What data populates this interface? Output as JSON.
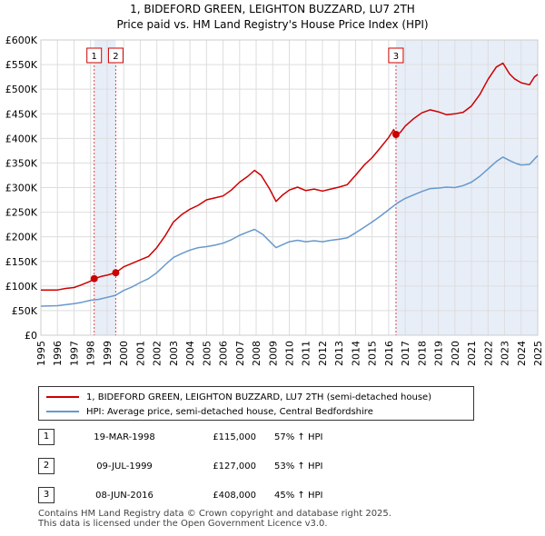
{
  "chart_data": {
    "type": "line",
    "title": "1, BIDEFORD GREEN, LEIGHTON BUZZARD, LU7 2TH",
    "subtitle": "Price paid vs. HM Land Registry's House Price Index (HPI)",
    "xlim": [
      1995,
      2025
    ],
    "ylim": [
      0,
      600000
    ],
    "x_ticks": [
      "1995",
      "1996",
      "1997",
      "1998",
      "1999",
      "2000",
      "2001",
      "2002",
      "2003",
      "2004",
      "2005",
      "2006",
      "2007",
      "2008",
      "2009",
      "2010",
      "2011",
      "2012",
      "2013",
      "2014",
      "2015",
      "2016",
      "2017",
      "2018",
      "2019",
      "2020",
      "2021",
      "2022",
      "2023",
      "2024",
      "2025"
    ],
    "y_ticks": [
      {
        "value": 0,
        "label": "£0"
      },
      {
        "value": 50000,
        "label": "£50K"
      },
      {
        "value": 100000,
        "label": "£100K"
      },
      {
        "value": 150000,
        "label": "£150K"
      },
      {
        "value": 200000,
        "label": "£200K"
      },
      {
        "value": 250000,
        "label": "£250K"
      },
      {
        "value": 300000,
        "label": "£300K"
      },
      {
        "value": 350000,
        "label": "£350K"
      },
      {
        "value": 400000,
        "label": "£400K"
      },
      {
        "value": 450000,
        "label": "£450K"
      },
      {
        "value": 500000,
        "label": "£500K"
      },
      {
        "value": 550000,
        "label": "£550K"
      },
      {
        "value": 600000,
        "label": "£600K"
      }
    ],
    "grid": true,
    "series": [
      {
        "name": "1, BIDEFORD GREEN, LEIGHTON BUZZARD, LU7 2TH (semi-detached house)",
        "color": "#cc0000",
        "points": [
          [
            1995.0,
            92000
          ],
          [
            1996.0,
            92000
          ],
          [
            1996.5,
            95000
          ],
          [
            1997.0,
            97000
          ],
          [
            1997.5,
            103000
          ],
          [
            1998.0,
            110000
          ],
          [
            1998.22,
            115000
          ],
          [
            1998.7,
            120000
          ],
          [
            1999.0,
            122000
          ],
          [
            1999.52,
            127000
          ],
          [
            2000.0,
            139000
          ],
          [
            2000.5,
            146000
          ],
          [
            2001.0,
            153000
          ],
          [
            2001.5,
            160000
          ],
          [
            2002.0,
            178000
          ],
          [
            2002.5,
            202000
          ],
          [
            2003.0,
            230000
          ],
          [
            2003.5,
            245000
          ],
          [
            2004.0,
            256000
          ],
          [
            2004.5,
            264000
          ],
          [
            2005.0,
            275000
          ],
          [
            2005.5,
            279000
          ],
          [
            2006.0,
            283000
          ],
          [
            2006.5,
            295000
          ],
          [
            2007.0,
            311000
          ],
          [
            2007.5,
            323000
          ],
          [
            2007.9,
            335000
          ],
          [
            2008.3,
            325000
          ],
          [
            2008.8,
            298000
          ],
          [
            2009.2,
            272000
          ],
          [
            2009.6,
            285000
          ],
          [
            2010.0,
            295000
          ],
          [
            2010.5,
            301000
          ],
          [
            2011.0,
            294000
          ],
          [
            2011.5,
            297000
          ],
          [
            2012.0,
            293000
          ],
          [
            2012.5,
            297000
          ],
          [
            2013.0,
            301000
          ],
          [
            2013.5,
            306000
          ],
          [
            2014.0,
            325000
          ],
          [
            2014.5,
            345000
          ],
          [
            2015.0,
            361000
          ],
          [
            2015.5,
            381000
          ],
          [
            2016.0,
            402000
          ],
          [
            2016.3,
            418000
          ],
          [
            2016.44,
            408000
          ],
          [
            2016.7,
            412000
          ],
          [
            2017.0,
            425000
          ],
          [
            2017.5,
            440000
          ],
          [
            2018.0,
            452000
          ],
          [
            2018.5,
            458000
          ],
          [
            2019.0,
            454000
          ],
          [
            2019.5,
            448000
          ],
          [
            2020.0,
            450000
          ],
          [
            2020.5,
            453000
          ],
          [
            2021.0,
            466000
          ],
          [
            2021.5,
            489000
          ],
          [
            2022.0,
            520000
          ],
          [
            2022.5,
            545000
          ],
          [
            2022.9,
            553000
          ],
          [
            2023.3,
            531000
          ],
          [
            2023.6,
            521000
          ],
          [
            2024.0,
            513000
          ],
          [
            2024.5,
            509000
          ],
          [
            2024.8,
            525000
          ],
          [
            2025.0,
            530000
          ]
        ]
      },
      {
        "name": "HPI: Average price, semi-detached house, Central Bedfordshire",
        "color": "#6699cc",
        "points": [
          [
            1995.0,
            59000
          ],
          [
            1996.0,
            60000
          ],
          [
            1996.5,
            62000
          ],
          [
            1997.0,
            64000
          ],
          [
            1997.5,
            67000
          ],
          [
            1998.0,
            71000
          ],
          [
            1998.5,
            73000
          ],
          [
            1999.0,
            77000
          ],
          [
            1999.5,
            81000
          ],
          [
            2000.0,
            91000
          ],
          [
            2000.5,
            98000
          ],
          [
            2001.0,
            107000
          ],
          [
            2001.5,
            115000
          ],
          [
            2002.0,
            127000
          ],
          [
            2002.5,
            143000
          ],
          [
            2003.0,
            158000
          ],
          [
            2003.5,
            166000
          ],
          [
            2004.0,
            173000
          ],
          [
            2004.5,
            178000
          ],
          [
            2005.0,
            180000
          ],
          [
            2005.5,
            183000
          ],
          [
            2006.0,
            187000
          ],
          [
            2006.5,
            194000
          ],
          [
            2007.0,
            203000
          ],
          [
            2007.5,
            210000
          ],
          [
            2007.9,
            215000
          ],
          [
            2008.4,
            205000
          ],
          [
            2008.9,
            188000
          ],
          [
            2009.2,
            178000
          ],
          [
            2009.6,
            184000
          ],
          [
            2010.0,
            190000
          ],
          [
            2010.5,
            193000
          ],
          [
            2011.0,
            190000
          ],
          [
            2011.5,
            192000
          ],
          [
            2012.0,
            190000
          ],
          [
            2012.5,
            193000
          ],
          [
            2013.0,
            195000
          ],
          [
            2013.5,
            198000
          ],
          [
            2014.0,
            208000
          ],
          [
            2014.5,
            219000
          ],
          [
            2015.0,
            230000
          ],
          [
            2015.5,
            242000
          ],
          [
            2016.0,
            255000
          ],
          [
            2016.5,
            268000
          ],
          [
            2017.0,
            278000
          ],
          [
            2017.5,
            285000
          ],
          [
            2018.0,
            292000
          ],
          [
            2018.5,
            298000
          ],
          [
            2019.0,
            299000
          ],
          [
            2019.5,
            301000
          ],
          [
            2020.0,
            300000
          ],
          [
            2020.5,
            304000
          ],
          [
            2021.0,
            311000
          ],
          [
            2021.5,
            323000
          ],
          [
            2022.0,
            338000
          ],
          [
            2022.5,
            353000
          ],
          [
            2022.9,
            362000
          ],
          [
            2023.3,
            355000
          ],
          [
            2023.7,
            349000
          ],
          [
            2024.0,
            346000
          ],
          [
            2024.5,
            347000
          ],
          [
            2024.8,
            358000
          ],
          [
            2025.0,
            365000
          ]
        ]
      }
    ],
    "sales": [
      {
        "num": "1",
        "x": 1998.22,
        "value": 115000
      },
      {
        "num": "2",
        "x": 1999.52,
        "value": 127000
      },
      {
        "num": "3",
        "x": 2016.44,
        "value": 408000
      }
    ],
    "shaded_ranges": [
      [
        1998.22,
        1999.52
      ],
      [
        2016.44,
        2025.0
      ]
    ],
    "legend_placement": "bottom"
  },
  "legend": {
    "property": "1, BIDEFORD GREEN, LEIGHTON BUZZARD, LU7 2TH (semi-detached house)",
    "hpi": "HPI: Average price, semi-detached house, Central Bedfordshire"
  },
  "sales_table": [
    {
      "num": "1",
      "date": "19-MAR-1998",
      "price": "£115,000",
      "hpi": "57% ↑ HPI"
    },
    {
      "num": "2",
      "date": "09-JUL-1999",
      "price": "£127,000",
      "hpi": "53% ↑ HPI"
    },
    {
      "num": "3",
      "date": "08-JUN-2016",
      "price": "£408,000",
      "hpi": "45% ↑ HPI"
    }
  ],
  "footer": {
    "line1": "Contains HM Land Registry data © Crown copyright and database right 2025.",
    "line2": "This data is licensed under the Open Government Licence v3.0."
  },
  "colors": {
    "property": "#cc0000",
    "hpi": "#6699cc",
    "shade": "#e8eef8",
    "grid": "#dddddd"
  }
}
